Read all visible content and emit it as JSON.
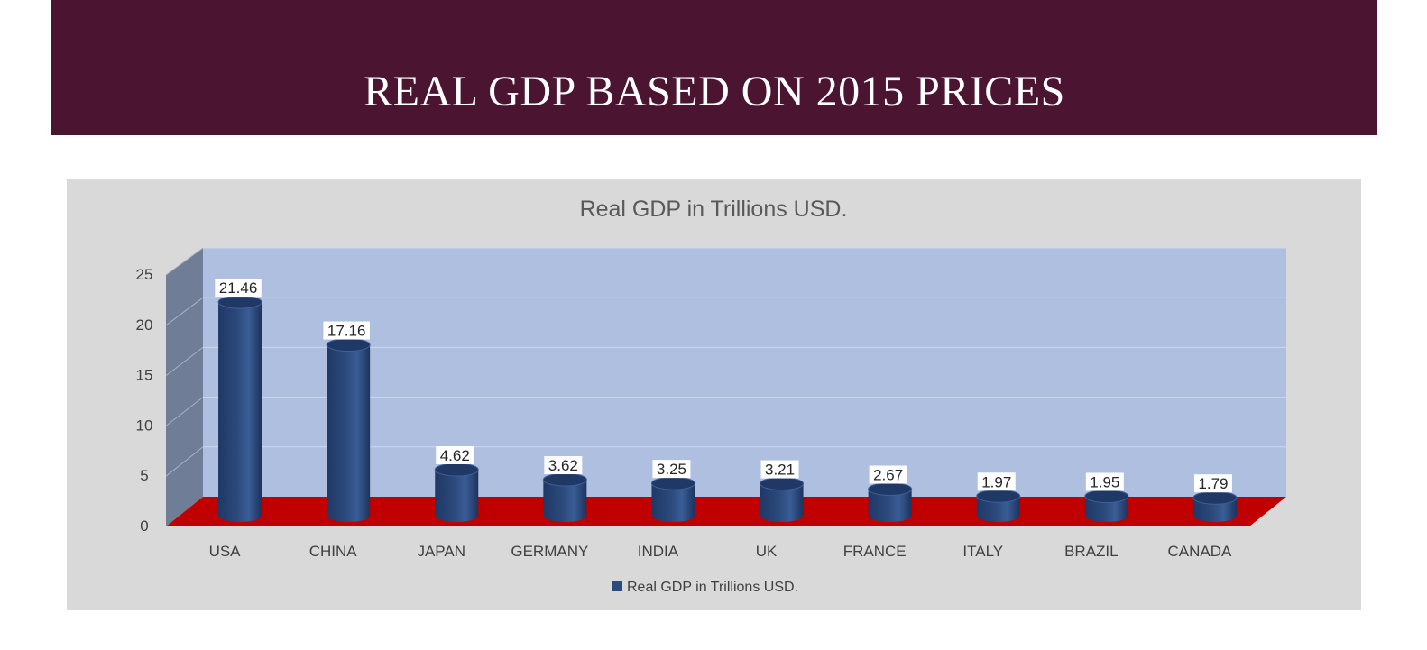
{
  "page_title": "REAL GDP BASED ON 2015 PRICES",
  "colors": {
    "banner": "#4b1431",
    "panel": "#d9d9d9",
    "back_wall": "#aebfe0",
    "side_wall": "#6f7e96",
    "floor": "#c00000",
    "bar": "#2c4a7c",
    "bar_top": "#1f3866",
    "text": "#404040"
  },
  "chart_data": {
    "type": "bar",
    "style": "3d-cylinder",
    "title": "Real GDP in Trillions USD.",
    "categories": [
      "USA",
      "CHINA",
      "JAPAN",
      "GERMANY",
      "INDIA",
      "UK",
      "FRANCE",
      "ITALY",
      "BRAZIL",
      "CANADA"
    ],
    "series": [
      {
        "name": "Real GDP in Trillions USD.",
        "values": [
          21.46,
          17.16,
          4.62,
          3.62,
          3.25,
          3.21,
          2.67,
          1.97,
          1.95,
          1.79
        ],
        "labels": [
          "21.46",
          "17.16",
          "4.62",
          "3.62",
          "3.25",
          "3.21",
          "2.67",
          "1.97",
          "1.95",
          "1.79"
        ]
      }
    ],
    "yticks": [
      "0",
      "5",
      "10",
      "15",
      "20",
      "25"
    ],
    "ylim": [
      0,
      25
    ],
    "grid": true,
    "legend": "bottom",
    "xlabel": "",
    "ylabel": ""
  }
}
